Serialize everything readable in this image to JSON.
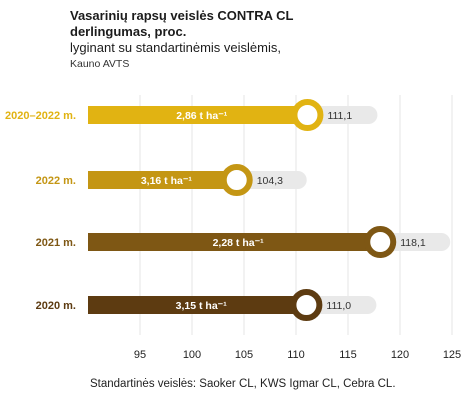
{
  "header": {
    "title_line1": "Vasarinių rapsų veislės CONTRA CL",
    "title_line2": "derlingumas, proc.",
    "subtitle": "lyginant su standartinėmis veislėmis,",
    "source": "Kauno AVTS"
  },
  "footnote": "Standartinės veislės: Saoker CL, KWS Igmar CL, Cebra CL.",
  "chart_data": {
    "type": "bar",
    "orientation": "horizontal",
    "title": "Vasarinių rapsų veislės CONTRA CL derlingumas, proc.",
    "xlim": [
      90,
      125
    ],
    "xticks": [
      95,
      100,
      105,
      110,
      115,
      120,
      125
    ],
    "grid": true,
    "categories": [
      "2020–2022 m.",
      "2022 m.",
      "2021 m.",
      "2020 m."
    ],
    "values": [
      111.1,
      104.3,
      118.1,
      111.0
    ],
    "value_labels": [
      "111,1",
      "104,3",
      "118,1",
      "111,0"
    ],
    "yield_labels": [
      "2,86 t ha⁻¹",
      "3,16 t ha⁻¹",
      "2,28 t ha⁻¹",
      "3,15 t ha⁻¹"
    ],
    "colors": [
      "#e1b312",
      "#c49614",
      "#7e5714",
      "#5d3b11"
    ]
  }
}
